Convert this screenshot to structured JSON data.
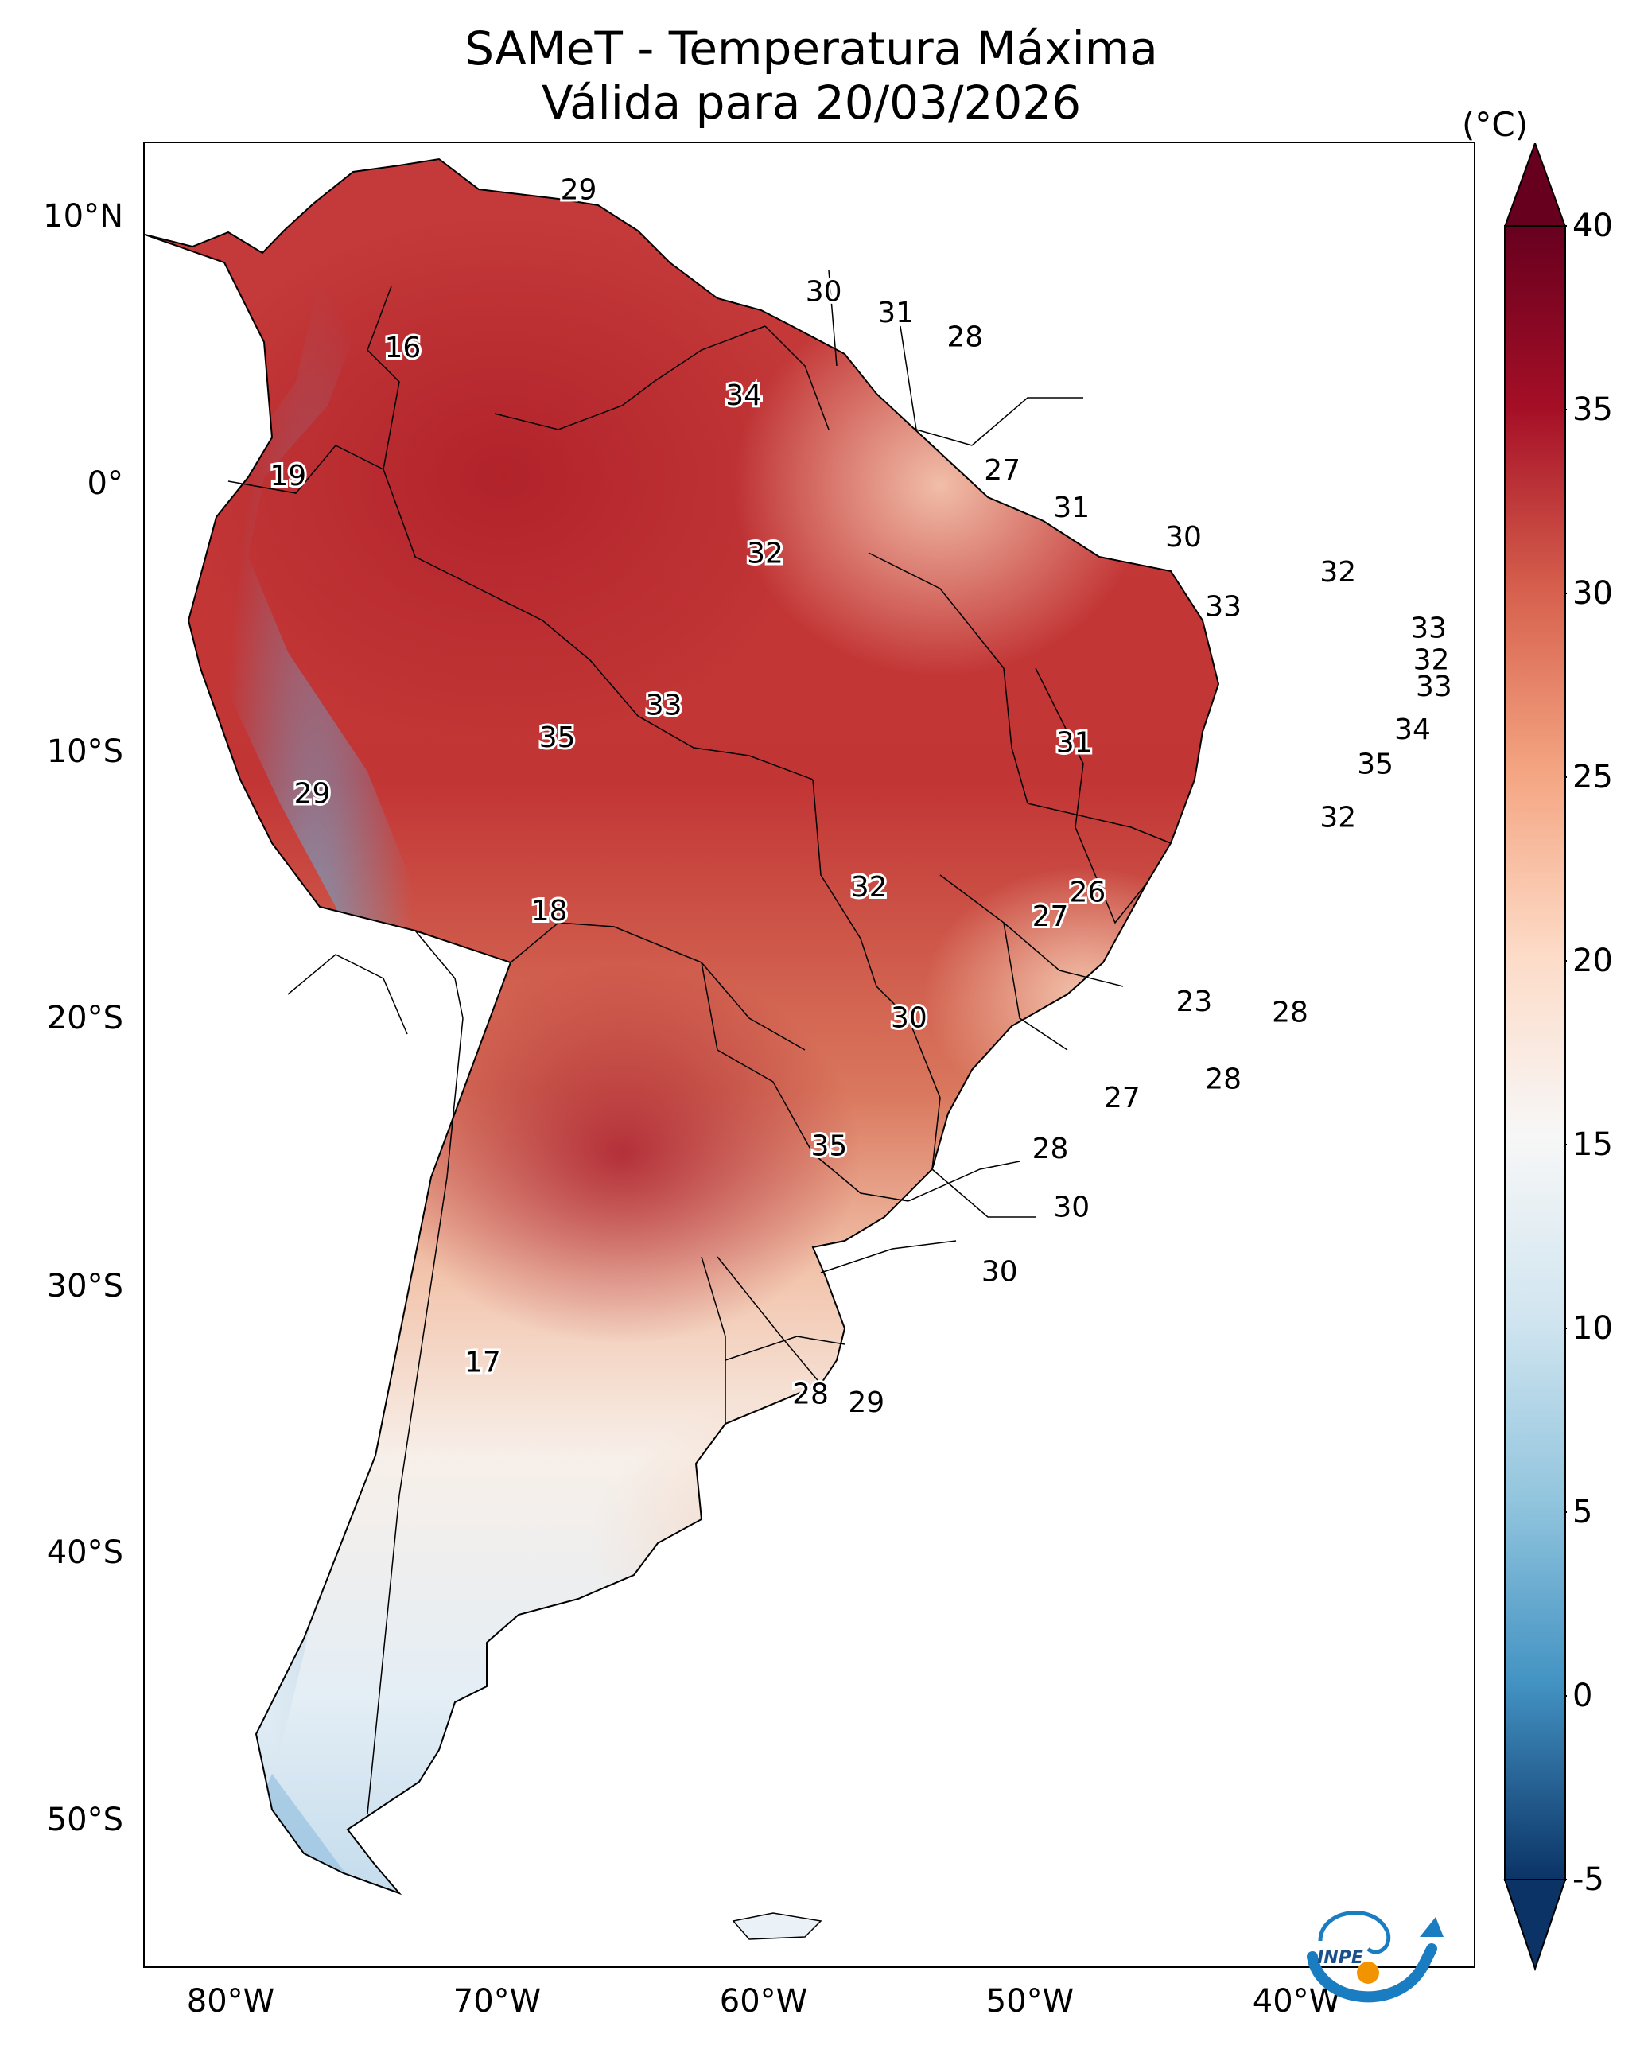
{
  "title": {
    "line1": "SAMeT - Temperatura Máxima",
    "line2": "Válida para 20/03/2026"
  },
  "axes": {
    "lat_ticks": [
      "10°N",
      "0°",
      "10°S",
      "20°S",
      "30°S",
      "40°S",
      "50°S"
    ],
    "lon_ticks": [
      "80°W",
      "70°W",
      "60°W",
      "50°W",
      "40°W"
    ]
  },
  "colorbar": {
    "unit": "(°C)",
    "ticks": [
      "40",
      "35",
      "30",
      "25",
      "20",
      "15",
      "10",
      "5",
      "0",
      "-5"
    ],
    "min": -5,
    "max": 40,
    "extend": "both",
    "colors": {
      "min_end": "#0b3366",
      "blue": "#2c6fb4",
      "light_blue": "#93c4df",
      "white": "#f7f7f7",
      "light_red": "#f4ab8a",
      "red": "#d6604d",
      "dark_red": "#b2182b",
      "max_end": "#67001f"
    }
  },
  "station_labels": [
    {
      "text": "29",
      "lon": -67.0,
      "lat": 10.5
    },
    {
      "text": "30",
      "lon": -57.8,
      "lat": 6.7
    },
    {
      "text": "31",
      "lon": -55.1,
      "lat": 5.9
    },
    {
      "text": "28",
      "lon": -52.5,
      "lat": 5.0
    },
    {
      "text": "34",
      "lon": -60.8,
      "lat": 2.8
    },
    {
      "text": "16",
      "lon": -73.6,
      "lat": 4.6
    },
    {
      "text": "19",
      "lon": -77.9,
      "lat": -0.2
    },
    {
      "text": "27",
      "lon": -51.1,
      "lat": 0.0
    },
    {
      "text": "31",
      "lon": -48.5,
      "lat": -1.4
    },
    {
      "text": "30",
      "lon": -44.3,
      "lat": -2.5
    },
    {
      "text": "32",
      "lon": -60.0,
      "lat": -3.1
    },
    {
      "text": "32",
      "lon": -38.5,
      "lat": -3.8
    },
    {
      "text": "33",
      "lon": -42.8,
      "lat": -5.1
    },
    {
      "text": "33",
      "lon": -35.1,
      "lat": -5.9
    },
    {
      "text": "32",
      "lon": -35.0,
      "lat": -7.1
    },
    {
      "text": "33",
      "lon": -34.9,
      "lat": -8.1
    },
    {
      "text": "33",
      "lon": -63.8,
      "lat": -8.8
    },
    {
      "text": "35",
      "lon": -67.8,
      "lat": -10.0
    },
    {
      "text": "31",
      "lon": -48.4,
      "lat": -10.2
    },
    {
      "text": "34",
      "lon": -35.7,
      "lat": -9.7
    },
    {
      "text": "35",
      "lon": -37.1,
      "lat": -11.0
    },
    {
      "text": "29",
      "lon": -77.0,
      "lat": -12.1
    },
    {
      "text": "32",
      "lon": -38.5,
      "lat": -13.0
    },
    {
      "text": "32",
      "lon": -56.1,
      "lat": -15.6
    },
    {
      "text": "26",
      "lon": -47.9,
      "lat": -15.8
    },
    {
      "text": "27",
      "lon": -49.3,
      "lat": -16.7
    },
    {
      "text": "18",
      "lon": -68.1,
      "lat": -16.5
    },
    {
      "text": "23",
      "lon": -43.9,
      "lat": -19.9
    },
    {
      "text": "28",
      "lon": -40.3,
      "lat": -20.3
    },
    {
      "text": "30",
      "lon": -54.6,
      "lat": -20.5
    },
    {
      "text": "28",
      "lon": -42.8,
      "lat": -22.8
    },
    {
      "text": "27",
      "lon": -46.6,
      "lat": -23.5
    },
    {
      "text": "35",
      "lon": -57.6,
      "lat": -25.3
    },
    {
      "text": "28",
      "lon": -49.3,
      "lat": -25.4
    },
    {
      "text": "30",
      "lon": -48.5,
      "lat": -27.6
    },
    {
      "text": "30",
      "lon": -51.2,
      "lat": -30.0
    },
    {
      "text": "17",
      "lon": -70.6,
      "lat": -33.4
    },
    {
      "text": "28",
      "lon": -58.3,
      "lat": -34.6
    },
    {
      "text": "29",
      "lon": -56.2,
      "lat": -34.9
    }
  ],
  "logo": {
    "text": "INPE"
  }
}
